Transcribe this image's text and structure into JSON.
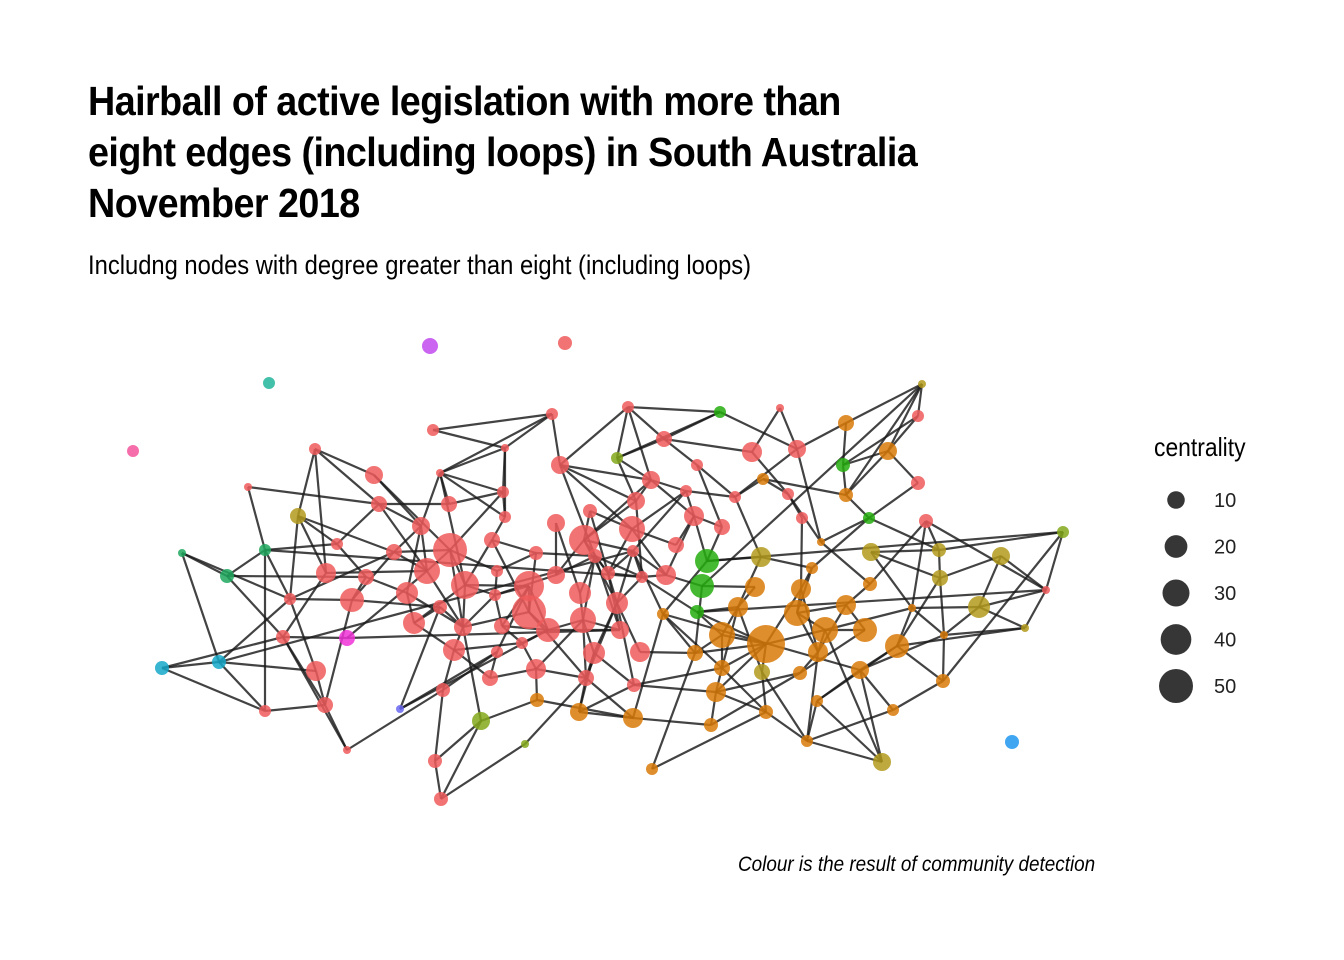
{
  "title_lines": [
    "Hairball of active legislation with more than",
    "eight edges (including loops) in South Australia",
    "November 2018"
  ],
  "subtitle": "Includng nodes with degree greater than eight (including loops)",
  "caption": "Colour is the result of community detection",
  "legend": {
    "title": "centrality",
    "entries": [
      {
        "label": "10",
        "value": 10
      },
      {
        "label": "20",
        "value": 20
      },
      {
        "label": "30",
        "value": 30
      },
      {
        "label": "40",
        "value": 40
      },
      {
        "label": "50",
        "value": 50
      }
    ]
  },
  "colors": {
    "red": "#ef5a5a",
    "orange": "#d97a08",
    "olive": "#b39a1c",
    "green": "#26ad0f",
    "yellowgreen": "#84a81a",
    "teal": "#22b59a",
    "seagreen": "#1ea85e",
    "cyan": "#15a8c8",
    "blue": "#1f96f0",
    "purple": "#c149ef",
    "magenta": "#ee33d6",
    "pink": "#f5549c",
    "indigo": "#6a6af2",
    "edge": "#1a1a1a",
    "legend_marker": "#1a1a1a"
  }
}
